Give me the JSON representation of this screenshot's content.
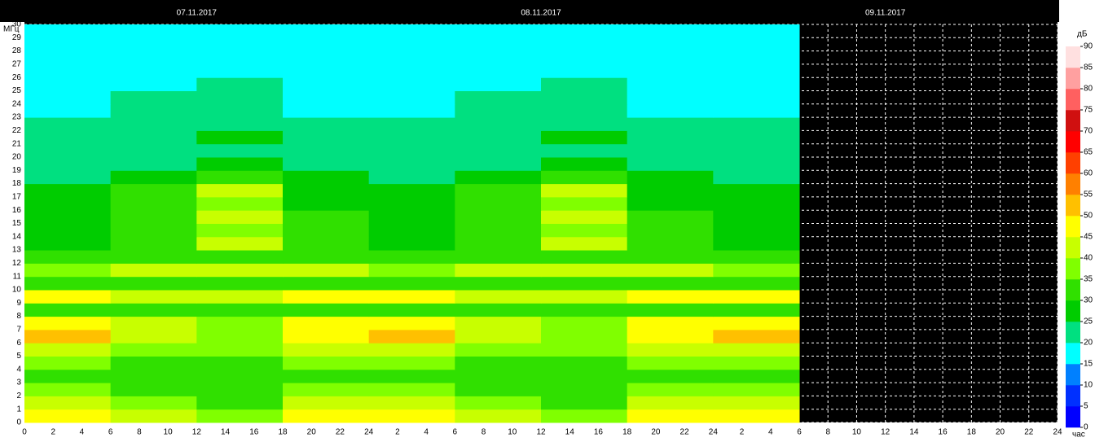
{
  "chart_data": {
    "type": "heatmap",
    "y_label": "МГц",
    "x_label": "час",
    "colorbar_label": "дБ",
    "date_labels": [
      {
        "x": 12,
        "label": "07.11.2017"
      },
      {
        "x": 36,
        "label": "08.11.2017"
      },
      {
        "x": 60,
        "label": "09.11.2017"
      }
    ],
    "xlim": [
      0,
      72
    ],
    "xticks": [
      0,
      2,
      4,
      6,
      8,
      10,
      12,
      14,
      16,
      18,
      20,
      22,
      24,
      {
        "value": 26,
        "label": "2"
      },
      {
        "value": 28,
        "label": "4"
      },
      {
        "value": 30,
        "label": "6"
      },
      {
        "value": 32,
        "label": "8"
      },
      {
        "value": 34,
        "label": "10"
      },
      {
        "value": 36,
        "label": "12"
      },
      {
        "value": 38,
        "label": "14"
      },
      {
        "value": 40,
        "label": "16"
      },
      {
        "value": 42,
        "label": "18"
      },
      {
        "value": 44,
        "label": "20"
      },
      {
        "value": 46,
        "label": "22"
      },
      {
        "value": 48,
        "label": "24"
      },
      {
        "value": 50,
        "label": "2"
      },
      {
        "value": 52,
        "label": "4"
      },
      {
        "value": 54,
        "label": "6"
      },
      {
        "value": 56,
        "label": "8"
      },
      {
        "value": 58,
        "label": "10"
      },
      {
        "value": 60,
        "label": "12"
      },
      {
        "value": 62,
        "label": "14"
      },
      {
        "value": 64,
        "label": "16"
      },
      {
        "value": 66,
        "label": "18"
      },
      {
        "value": 68,
        "label": "20"
      },
      {
        "value": 70,
        "label": "22"
      },
      {
        "value": 72,
        "label": "24"
      }
    ],
    "ylim": [
      0,
      30
    ],
    "yticks": [
      0,
      1,
      2,
      3,
      4,
      5,
      6,
      7,
      8,
      9,
      10,
      11,
      12,
      13,
      14,
      15,
      16,
      17,
      18,
      19,
      20,
      21,
      22,
      23,
      24,
      25,
      26,
      27,
      28,
      29,
      30
    ],
    "grid": true,
    "x_bins": [
      0,
      6,
      12,
      18,
      24,
      30,
      36,
      42,
      48,
      54
    ],
    "y_bins": [
      0,
      1,
      2,
      3,
      4,
      5,
      6,
      7,
      8,
      9,
      10,
      11,
      12,
      13,
      14,
      15,
      16,
      17,
      18,
      19,
      20,
      21,
      22,
      23,
      24,
      25,
      26,
      27,
      28,
      29,
      30
    ],
    "z": [
      [
        45,
        40,
        35,
        45,
        45,
        40,
        35,
        45,
        45
      ],
      [
        42,
        38,
        33,
        42,
        42,
        38,
        33,
        42,
        42
      ],
      [
        35,
        33,
        30,
        35,
        35,
        33,
        30,
        35,
        35
      ],
      [
        33,
        32,
        30,
        33,
        33,
        32,
        30,
        33,
        33
      ],
      [
        35,
        33,
        32,
        35,
        35,
        33,
        32,
        35,
        35
      ],
      [
        40,
        36,
        35,
        40,
        40,
        36,
        35,
        40,
        40
      ],
      [
        50,
        40,
        38,
        48,
        50,
        40,
        38,
        48,
        50
      ],
      [
        48,
        40,
        38,
        45,
        48,
        40,
        38,
        45,
        48
      ],
      [
        33,
        32,
        30,
        33,
        33,
        32,
        30,
        33,
        33
      ],
      [
        45,
        42,
        40,
        48,
        45,
        42,
        40,
        48,
        45
      ],
      [
        32,
        32,
        33,
        33,
        32,
        32,
        33,
        33,
        32
      ],
      [
        38,
        40,
        42,
        40,
        38,
        40,
        42,
        40,
        38
      ],
      [
        30,
        30,
        33,
        30,
        30,
        30,
        33,
        30,
        30
      ],
      [
        28,
        32,
        40,
        30,
        28,
        32,
        40,
        30,
        28
      ],
      [
        27,
        32,
        38,
        30,
        27,
        32,
        38,
        30,
        27
      ],
      [
        26,
        32,
        40,
        30,
        26,
        32,
        40,
        30,
        26
      ],
      [
        25,
        30,
        35,
        28,
        25,
        30,
        35,
        28,
        25
      ],
      [
        25,
        33,
        42,
        28,
        25,
        33,
        42,
        28,
        25
      ],
      [
        23,
        27,
        30,
        25,
        23,
        27,
        30,
        25,
        23
      ],
      [
        20,
        22,
        25,
        21,
        20,
        22,
        25,
        21,
        20
      ],
      [
        20,
        21,
        23,
        21,
        20,
        21,
        23,
        21,
        20
      ],
      [
        21,
        23,
        26,
        22,
        21,
        23,
        26,
        22,
        21
      ],
      [
        20,
        21,
        22,
        20,
        20,
        21,
        22,
        20,
        20
      ],
      [
        19,
        20,
        21,
        19,
        19,
        20,
        21,
        19,
        19
      ],
      [
        19,
        20,
        21,
        19,
        19,
        20,
        21,
        19,
        19
      ],
      [
        18,
        19,
        20,
        18,
        18,
        19,
        20,
        18,
        18
      ],
      [
        17,
        18,
        19,
        17,
        17,
        18,
        19,
        17,
        17
      ],
      [
        17,
        18,
        18,
        17,
        17,
        18,
        18,
        17,
        17
      ],
      [
        16,
        17,
        17,
        16,
        16,
        17,
        17,
        16,
        16
      ],
      [
        15,
        16,
        17,
        15,
        15,
        16,
        17,
        15,
        15
      ]
    ],
    "clim": [
      0,
      90
    ],
    "cticks": [
      0,
      5,
      10,
      15,
      20,
      25,
      30,
      35,
      40,
      45,
      50,
      55,
      60,
      65,
      70,
      75,
      80,
      85,
      90
    ],
    "colorscale": [
      "#0000ff",
      "#0030ff",
      "#0080ff",
      "#00ffff",
      "#00e080",
      "#00cc00",
      "#30e000",
      "#80ff00",
      "#c8ff00",
      "#ffff00",
      "#ffc000",
      "#ff8000",
      "#ff4000",
      "#ff0000",
      "#d01010",
      "#ff6060",
      "#ffa0a0",
      "#ffe0e0"
    ]
  }
}
